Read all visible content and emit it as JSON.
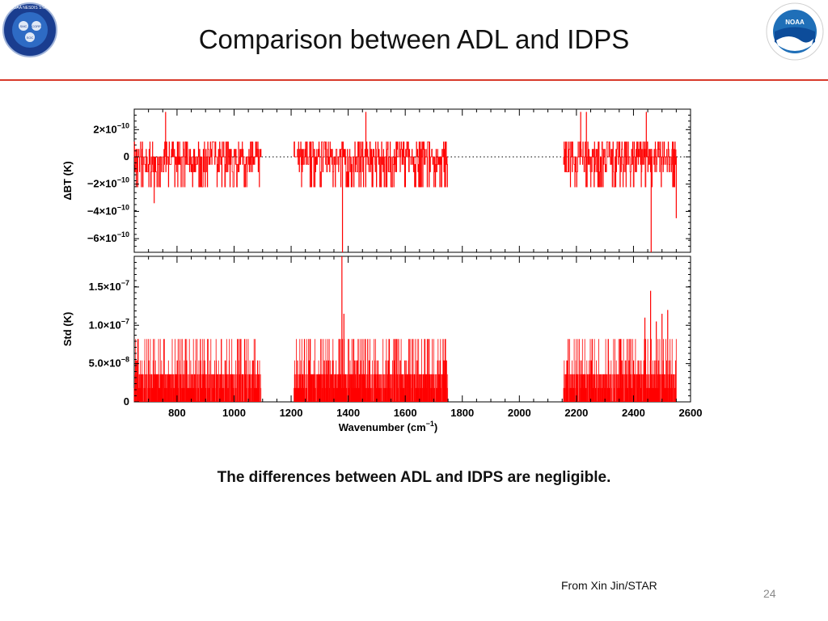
{
  "slide": {
    "title": "Comparison between ADL and IDPS",
    "caption": "The differences between ADL and IDPS are negligible.",
    "credit": "From Xin Jin/STAR",
    "page_number": "24",
    "accent_color": "#d83a2a",
    "logos": [
      {
        "name": "noaa-nesdis-star-logo",
        "text": "NOAA NESDIS STAR",
        "inner": [
          "SMC",
          "CORP",
          "SOC"
        ]
      },
      {
        "name": "noaa-logo",
        "text": "NOAA",
        "ring_text": "NATIONAL OCEANIC AND ATMOSPHERIC ADMINISTRATION · U.S. DEPARTMENT OF COMMERCE"
      }
    ]
  },
  "chart_data": [
    {
      "type": "line",
      "panel": "top",
      "ylabel": "ΔBT (K)",
      "xlim": [
        650,
        2600
      ],
      "ylim": [
        -7e-10,
        3.5e-10
      ],
      "yticks": [
        {
          "value": 2e-10,
          "label": "2×10",
          "exp": "−10"
        },
        {
          "value": 0,
          "label": "0",
          "exp": ""
        },
        {
          "value": -2e-10,
          "label": "−2×10",
          "exp": "−10"
        },
        {
          "value": -4e-10,
          "label": "−4×10",
          "exp": "−10"
        },
        {
          "value": -6e-10,
          "label": "−6×10",
          "exp": "−10"
        }
      ],
      "zero_line": "dotted",
      "series_color": "#ff0000",
      "bands": [
        [
          650,
          1095
        ],
        [
          1210,
          1750
        ],
        [
          2155,
          2550
        ]
      ],
      "typical_range": [
        -2.2e-10,
        1.1e-10
      ],
      "spikes": [
        {
          "x": 1380,
          "y": -7e-10
        },
        {
          "x": 1462,
          "y": 3.3e-10
        },
        {
          "x": 2462,
          "y": -7e-10
        },
        {
          "x": 2445,
          "y": 3.3e-10
        },
        {
          "x": 2235,
          "y": 3.3e-10
        },
        {
          "x": 2215,
          "y": 3.3e-10
        },
        {
          "x": 760,
          "y": 3.3e-10
        },
        {
          "x": 720,
          "y": -3.4e-10
        },
        {
          "x": 2550,
          "y": -4.5e-10
        }
      ]
    },
    {
      "type": "line",
      "panel": "bottom",
      "ylabel": "Std (K)",
      "xlabel": "Wavenumber (cm",
      "xlabel_exp": "−1",
      "xlabel_suffix": ")",
      "xlim": [
        650,
        2600
      ],
      "ylim": [
        0,
        1.9e-07
      ],
      "xticks": [
        800,
        1000,
        1200,
        1400,
        1600,
        1800,
        2000,
        2200,
        2400,
        2600
      ],
      "yticks": [
        {
          "value": 1.5e-07,
          "label": "1.5×10",
          "exp": "−7"
        },
        {
          "value": 1e-07,
          "label": "1.0×10",
          "exp": "−7"
        },
        {
          "value": 5e-08,
          "label": "5.0×10",
          "exp": "−8"
        },
        {
          "value": 0,
          "label": "0",
          "exp": ""
        }
      ],
      "series_color": "#ff0000",
      "bands": [
        [
          650,
          1095
        ],
        [
          1210,
          1750
        ],
        [
          2155,
          2550
        ]
      ],
      "typical_max": 8.2e-08,
      "spikes": [
        {
          "x": 1378,
          "y": 1.9e-07
        },
        {
          "x": 1385,
          "y": 1.15e-07
        },
        {
          "x": 2460,
          "y": 1.45e-07
        },
        {
          "x": 2520,
          "y": 1.2e-07
        },
        {
          "x": 2500,
          "y": 1.15e-07
        },
        {
          "x": 2440,
          "y": 1.1e-07
        },
        {
          "x": 2480,
          "y": 1.05e-07
        }
      ]
    }
  ]
}
